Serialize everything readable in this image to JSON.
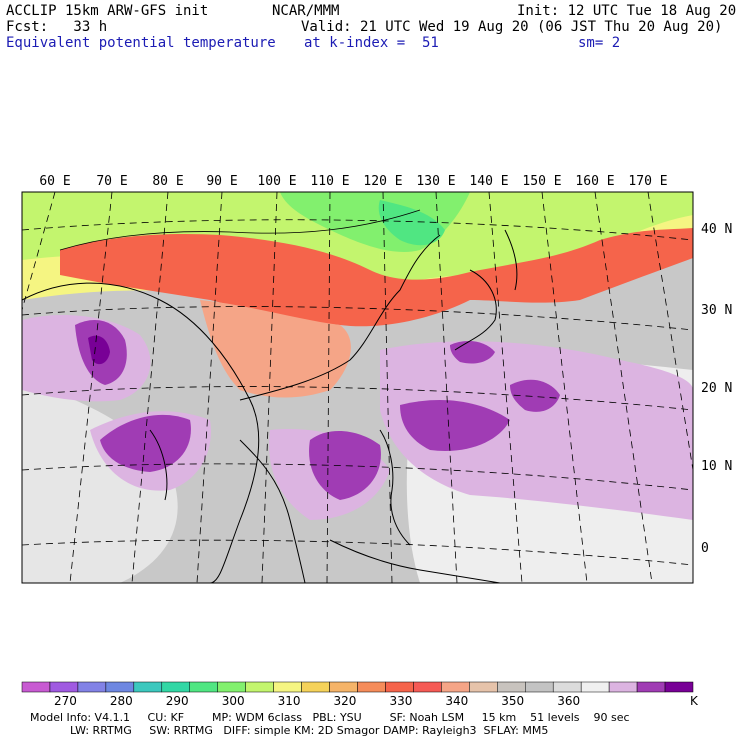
{
  "header": {
    "model": "ACCLIP 15km ARW-GFS init",
    "org": "NCAR/MMM",
    "init": "Init: 12 UTC Tue 18 Aug 20",
    "fcst": "Fcst:   33 h",
    "valid": "Valid: 21 UTC Wed 19 Aug 20 (06 JST Thu 20 Aug 20)",
    "field": "Equivalent potential temperature",
    "level": "at k-index =  51",
    "smooth": "sm= 2"
  },
  "map": {
    "lon_labels": [
      "60 E",
      "70 E",
      "80 E",
      "90 E",
      "100 E",
      "110 E",
      "120 E",
      "130 E",
      "140 E",
      "150 E",
      "160 E",
      "170 E"
    ],
    "lat_labels": [
      "40 N",
      "30 N",
      "20 N",
      "10 N",
      "0"
    ]
  },
  "colorbar": {
    "colors": [
      "#c85ad2",
      "#a05ae1",
      "#8282e6",
      "#6e87e1",
      "#3cc8be",
      "#32d7a5",
      "#50e682",
      "#82f06e",
      "#c3f56e",
      "#f5f582",
      "#f5d25a",
      "#f5b469",
      "#f58c5a",
      "#f5644b",
      "#f55a55",
      "#f5a587",
      "#e6c3aa",
      "#c8c3be",
      "#c3c3c3",
      "#dcdcdc",
      "#f0f0f0",
      "#dcb4e1",
      "#a03cb4",
      "#780096"
    ],
    "labels": [
      "270",
      "280",
      "290",
      "300",
      "310",
      "320",
      "330",
      "340",
      "350",
      "360"
    ],
    "unit": "K"
  },
  "footer": {
    "line1": "Model Info: V4.1.1     CU: KF        MP: WDM 6class   PBL: YSU        SF: Noah LSM     15 km    51 levels    90 sec",
    "line2": "LW: RRTMG     SW: RRTMG   DIFF: simple KM: 2D Smagor DAMP: Rayleigh3  SFLAY: MM5"
  }
}
